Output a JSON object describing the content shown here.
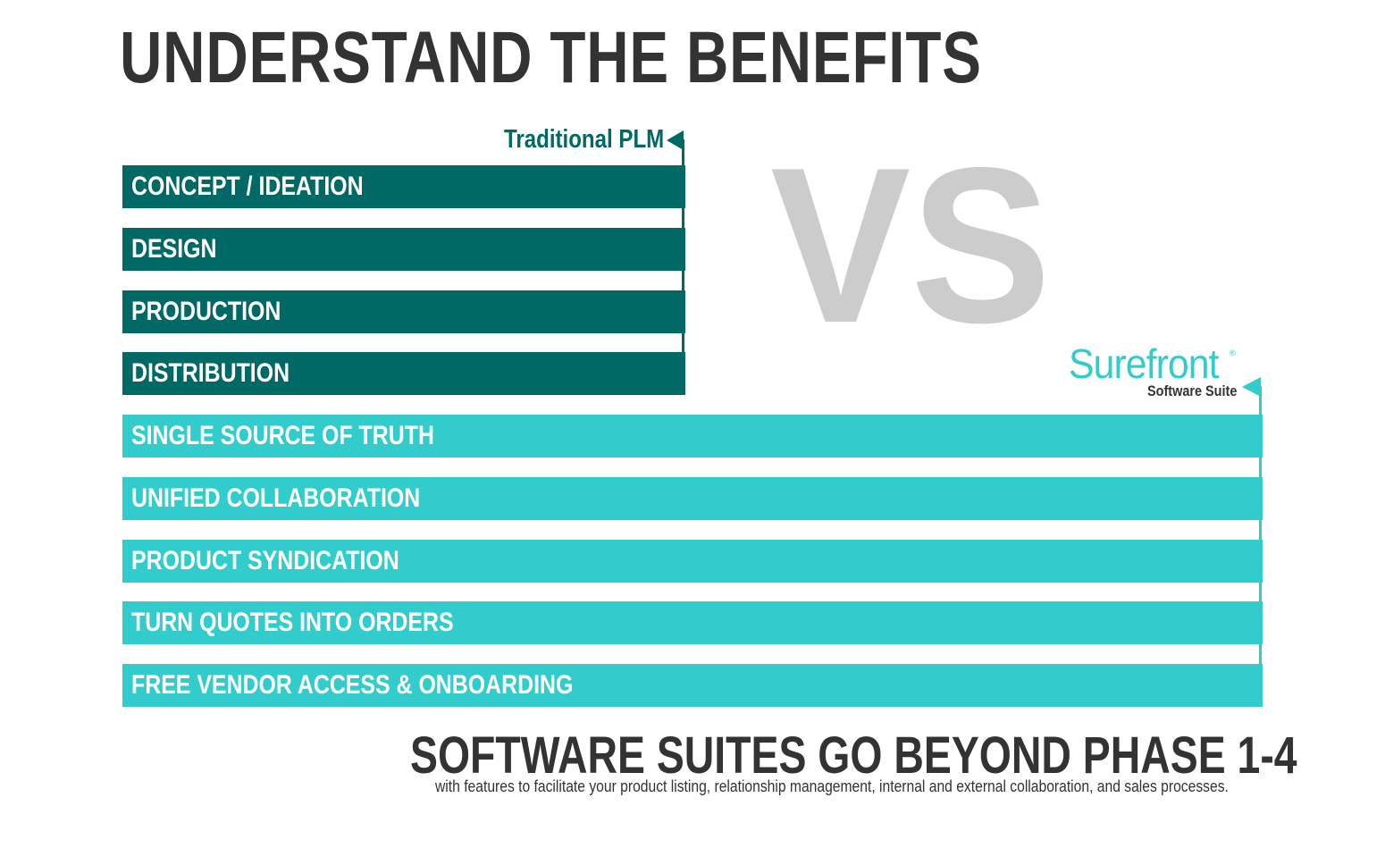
{
  "title": "UNDERSTAND THE BENEFITS",
  "traditional": {
    "label": "Traditional PLM",
    "color": "#006865",
    "phases": [
      "CONCEPT / IDEATION",
      "DESIGN",
      "PRODUCTION",
      "DISTRIBUTION"
    ]
  },
  "vs": "VS",
  "surefront": {
    "brand": "Surefront",
    "registered": "®",
    "subtitle": "Software Suite",
    "color": "#33cccc",
    "features": [
      "SINGLE SOURCE OF TRUTH",
      "UNIFIED COLLABORATION",
      "PRODUCT SYNDICATION",
      "TURN QUOTES INTO ORDERS",
      "FREE VENDOR ACCESS & ONBOARDING"
    ]
  },
  "footer": {
    "heading": "SOFTWARE SUITES GO BEYOND PHASE 1-4",
    "subtext": "with features to facilitate your  product listing, relationship management, internal and external collaboration, and sales processes."
  }
}
